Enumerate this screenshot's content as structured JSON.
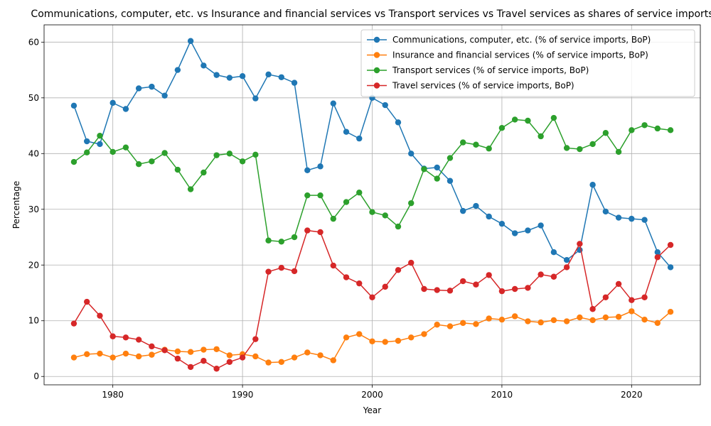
{
  "chart_data": {
    "type": "line",
    "title": "Communications, computer, etc. vs Insurance and financial services vs Transport services vs Travel services as shares of service imports",
    "xlabel": "Year",
    "ylabel": "Percentage",
    "xlim": [
      1974.7,
      2025.3
    ],
    "ylim": [
      -1.5,
      63.1
    ],
    "xticks": [
      1980,
      1990,
      2000,
      2010,
      2020
    ],
    "yticks": [
      0,
      10,
      20,
      30,
      40,
      50,
      60
    ],
    "grid": true,
    "legend_position": "top-right",
    "x": [
      1977,
      1978,
      1979,
      1980,
      1981,
      1982,
      1983,
      1984,
      1985,
      1986,
      1987,
      1988,
      1989,
      1990,
      1991,
      1992,
      1993,
      1994,
      1995,
      1996,
      1997,
      1998,
      1999,
      2000,
      2001,
      2002,
      2003,
      2004,
      2005,
      2006,
      2007,
      2008,
      2009,
      2010,
      2011,
      2012,
      2013,
      2014,
      2015,
      2016,
      2017,
      2018,
      2019,
      2020,
      2021,
      2022,
      2023
    ],
    "series": [
      {
        "name": "Communications, computer, etc. (% of service imports, BoP)",
        "color": "#1f77b4",
        "values": [
          48.6,
          42.2,
          41.7,
          49.1,
          48.0,
          51.7,
          52.0,
          50.4,
          55.0,
          60.2,
          55.8,
          54.1,
          53.6,
          53.9,
          49.9,
          54.2,
          53.7,
          52.7,
          37.0,
          37.7,
          49.0,
          43.9,
          42.7,
          50.0,
          48.7,
          45.6,
          40.0,
          37.3,
          37.5,
          35.1,
          29.7,
          30.6,
          28.7,
          27.4,
          25.7,
          26.2,
          27.1,
          22.3,
          20.9,
          22.7,
          34.4,
          29.6,
          28.5,
          28.3,
          28.1,
          22.3,
          19.6
        ]
      },
      {
        "name": "Insurance and financial services (% of service imports, BoP)",
        "color": "#ff7f0e",
        "values": [
          3.4,
          4.0,
          4.1,
          3.4,
          4.1,
          3.6,
          3.9,
          4.8,
          4.5,
          4.4,
          4.8,
          4.9,
          3.8,
          4.0,
          3.6,
          2.5,
          2.6,
          3.4,
          4.3,
          3.8,
          2.9,
          7.0,
          7.6,
          6.3,
          6.2,
          6.4,
          7.0,
          7.6,
          9.3,
          9.0,
          9.6,
          9.4,
          10.4,
          10.2,
          10.8,
          9.9,
          9.7,
          10.1,
          9.9,
          10.6,
          10.1,
          10.6,
          10.7,
          11.7,
          10.2,
          9.6,
          11.6
        ]
      },
      {
        "name": "Transport services (% of service imports, BoP)",
        "color": "#2ca02c",
        "values": [
          38.5,
          40.2,
          43.2,
          40.3,
          41.1,
          38.1,
          38.6,
          40.1,
          37.1,
          33.6,
          36.6,
          39.7,
          40.0,
          38.6,
          39.8,
          24.4,
          24.2,
          25.0,
          32.5,
          32.5,
          28.3,
          31.3,
          33.0,
          29.5,
          28.9,
          26.9,
          31.1,
          37.2,
          35.5,
          39.2,
          42.0,
          41.6,
          40.9,
          44.6,
          46.1,
          45.9,
          43.1,
          46.4,
          41.0,
          40.8,
          41.7,
          43.7,
          40.3,
          44.2,
          45.1,
          44.5,
          44.2
        ]
      },
      {
        "name": "Travel services (% of service imports, BoP)",
        "color": "#d62728",
        "values": [
          9.5,
          13.4,
          10.9,
          7.2,
          7.0,
          6.6,
          5.4,
          4.7,
          3.2,
          1.7,
          2.8,
          1.4,
          2.6,
          3.4,
          6.7,
          18.8,
          19.5,
          18.9,
          26.2,
          25.9,
          19.9,
          17.8,
          16.7,
          14.2,
          16.1,
          19.1,
          20.4,
          15.7,
          15.5,
          15.4,
          17.1,
          16.5,
          18.2,
          15.3,
          15.7,
          15.9,
          18.3,
          17.9,
          19.6,
          23.8,
          12.1,
          14.2,
          16.6,
          13.7,
          14.2,
          21.4,
          23.6
        ]
      }
    ]
  }
}
